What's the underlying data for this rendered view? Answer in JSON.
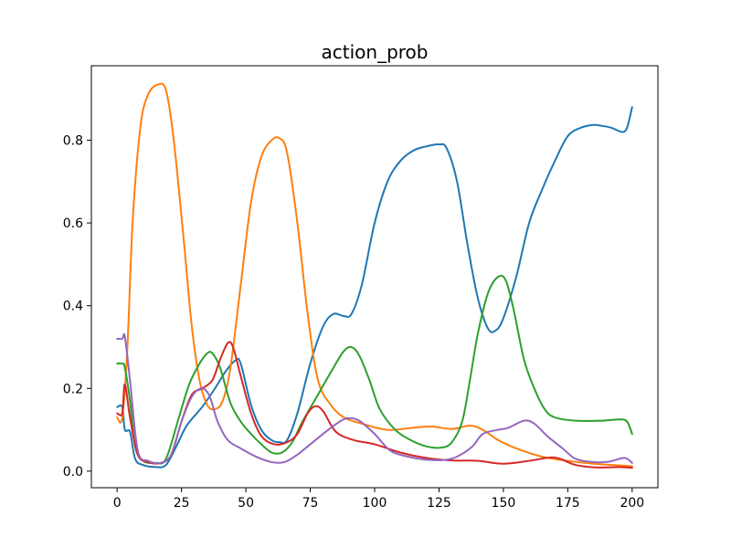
{
  "chart_data": {
    "type": "line",
    "title": "action_prob",
    "xlabel": "",
    "ylabel": "",
    "xlim": [
      -10,
      210
    ],
    "ylim": [
      -0.04,
      0.98
    ],
    "xticks": [
      0,
      25,
      50,
      75,
      100,
      125,
      150,
      175,
      200
    ],
    "yticks": [
      0.0,
      0.2,
      0.4,
      0.6,
      0.8
    ],
    "ytick_labels": [
      "0.0",
      "0.2",
      "0.4",
      "0.6",
      "0.8"
    ],
    "grid": false,
    "legend": "none",
    "series": [
      {
        "color": "#1f77b4",
        "points": [
          [
            0,
            0.155
          ],
          [
            2,
            0.155
          ],
          [
            3,
            0.1
          ],
          [
            5,
            0.095
          ],
          [
            7,
            0.03
          ],
          [
            10,
            0.015
          ],
          [
            15,
            0.01
          ],
          [
            19,
            0.015
          ],
          [
            23,
            0.06
          ],
          [
            27,
            0.11
          ],
          [
            33,
            0.155
          ],
          [
            38,
            0.2
          ],
          [
            42,
            0.24
          ],
          [
            46,
            0.268
          ],
          [
            48,
            0.26
          ],
          [
            52,
            0.16
          ],
          [
            56,
            0.1
          ],
          [
            60,
            0.075
          ],
          [
            63,
            0.07
          ],
          [
            66,
            0.075
          ],
          [
            70,
            0.14
          ],
          [
            75,
            0.26
          ],
          [
            80,
            0.35
          ],
          [
            84,
            0.38
          ],
          [
            88,
            0.375
          ],
          [
            91,
            0.38
          ],
          [
            95,
            0.45
          ],
          [
            100,
            0.6
          ],
          [
            105,
            0.7
          ],
          [
            110,
            0.75
          ],
          [
            115,
            0.775
          ],
          [
            120,
            0.785
          ],
          [
            125,
            0.79
          ],
          [
            128,
            0.78
          ],
          [
            132,
            0.7
          ],
          [
            136,
            0.55
          ],
          [
            140,
            0.42
          ],
          [
            144,
            0.345
          ],
          [
            147,
            0.34
          ],
          [
            150,
            0.37
          ],
          [
            155,
            0.47
          ],
          [
            160,
            0.6
          ],
          [
            165,
            0.68
          ],
          [
            170,
            0.75
          ],
          [
            175,
            0.81
          ],
          [
            180,
            0.83
          ],
          [
            185,
            0.837
          ],
          [
            188,
            0.835
          ],
          [
            192,
            0.83
          ],
          [
            196,
            0.82
          ],
          [
            198,
            0.83
          ],
          [
            200,
            0.88
          ]
        ]
      },
      {
        "color": "#ff7f0e",
        "points": [
          [
            0,
            0.13
          ],
          [
            2,
            0.13
          ],
          [
            4,
            0.3
          ],
          [
            6,
            0.6
          ],
          [
            9,
            0.83
          ],
          [
            12,
            0.91
          ],
          [
            16,
            0.935
          ],
          [
            19,
            0.92
          ],
          [
            22,
            0.8
          ],
          [
            26,
            0.55
          ],
          [
            29,
            0.35
          ],
          [
            32,
            0.22
          ],
          [
            35,
            0.16
          ],
          [
            38,
            0.15
          ],
          [
            41,
            0.17
          ],
          [
            44,
            0.25
          ],
          [
            48,
            0.45
          ],
          [
            52,
            0.65
          ],
          [
            56,
            0.76
          ],
          [
            60,
            0.8
          ],
          [
            63,
            0.805
          ],
          [
            66,
            0.77
          ],
          [
            70,
            0.6
          ],
          [
            74,
            0.38
          ],
          [
            78,
            0.22
          ],
          [
            83,
            0.16
          ],
          [
            88,
            0.13
          ],
          [
            95,
            0.115
          ],
          [
            105,
            0.1
          ],
          [
            115,
            0.105
          ],
          [
            122,
            0.108
          ],
          [
            130,
            0.102
          ],
          [
            137,
            0.11
          ],
          [
            142,
            0.1
          ],
          [
            148,
            0.075
          ],
          [
            155,
            0.055
          ],
          [
            165,
            0.035
          ],
          [
            175,
            0.025
          ],
          [
            185,
            0.018
          ],
          [
            195,
            0.014
          ],
          [
            200,
            0.012
          ]
        ]
      },
      {
        "color": "#2ca02c",
        "points": [
          [
            0,
            0.26
          ],
          [
            2,
            0.26
          ],
          [
            3,
            0.25
          ],
          [
            5,
            0.17
          ],
          [
            7,
            0.06
          ],
          [
            10,
            0.025
          ],
          [
            15,
            0.02
          ],
          [
            19,
            0.03
          ],
          [
            24,
            0.13
          ],
          [
            28,
            0.21
          ],
          [
            32,
            0.26
          ],
          [
            35,
            0.285
          ],
          [
            37,
            0.285
          ],
          [
            40,
            0.25
          ],
          [
            44,
            0.165
          ],
          [
            48,
            0.12
          ],
          [
            52,
            0.09
          ],
          [
            56,
            0.065
          ],
          [
            60,
            0.045
          ],
          [
            64,
            0.045
          ],
          [
            68,
            0.07
          ],
          [
            72,
            0.12
          ],
          [
            78,
            0.185
          ],
          [
            84,
            0.25
          ],
          [
            88,
            0.29
          ],
          [
            91,
            0.3
          ],
          [
            94,
            0.28
          ],
          [
            98,
            0.22
          ],
          [
            102,
            0.15
          ],
          [
            108,
            0.1
          ],
          [
            114,
            0.075
          ],
          [
            120,
            0.06
          ],
          [
            126,
            0.057
          ],
          [
            130,
            0.07
          ],
          [
            134,
            0.12
          ],
          [
            137,
            0.22
          ],
          [
            140,
            0.33
          ],
          [
            144,
            0.43
          ],
          [
            148,
            0.47
          ],
          [
            151,
            0.46
          ],
          [
            154,
            0.39
          ],
          [
            158,
            0.27
          ],
          [
            162,
            0.2
          ],
          [
            166,
            0.15
          ],
          [
            170,
            0.13
          ],
          [
            178,
            0.122
          ],
          [
            188,
            0.122
          ],
          [
            195,
            0.125
          ],
          [
            198,
            0.12
          ],
          [
            200,
            0.09
          ]
        ]
      },
      {
        "color": "#d62728",
        "points": [
          [
            0,
            0.14
          ],
          [
            2,
            0.14
          ],
          [
            3,
            0.21
          ],
          [
            5,
            0.13
          ],
          [
            8,
            0.04
          ],
          [
            12,
            0.022
          ],
          [
            17,
            0.02
          ],
          [
            21,
            0.04
          ],
          [
            25,
            0.12
          ],
          [
            29,
            0.185
          ],
          [
            33,
            0.2
          ],
          [
            37,
            0.22
          ],
          [
            40,
            0.27
          ],
          [
            43,
            0.31
          ],
          [
            45,
            0.3
          ],
          [
            48,
            0.23
          ],
          [
            52,
            0.14
          ],
          [
            56,
            0.085
          ],
          [
            61,
            0.065
          ],
          [
            66,
            0.07
          ],
          [
            70,
            0.09
          ],
          [
            74,
            0.14
          ],
          [
            77,
            0.157
          ],
          [
            80,
            0.145
          ],
          [
            85,
            0.095
          ],
          [
            92,
            0.075
          ],
          [
            100,
            0.065
          ],
          [
            110,
            0.045
          ],
          [
            120,
            0.032
          ],
          [
            130,
            0.026
          ],
          [
            140,
            0.025
          ],
          [
            150,
            0.018
          ],
          [
            160,
            0.025
          ],
          [
            168,
            0.033
          ],
          [
            172,
            0.03
          ],
          [
            178,
            0.015
          ],
          [
            186,
            0.009
          ],
          [
            195,
            0.01
          ],
          [
            200,
            0.008
          ]
        ]
      },
      {
        "color": "#9467bd",
        "points": [
          [
            0,
            0.32
          ],
          [
            2,
            0.32
          ],
          [
            3,
            0.325
          ],
          [
            5,
            0.22
          ],
          [
            8,
            0.05
          ],
          [
            12,
            0.025
          ],
          [
            17,
            0.02
          ],
          [
            21,
            0.04
          ],
          [
            25,
            0.12
          ],
          [
            29,
            0.18
          ],
          [
            33,
            0.2
          ],
          [
            36,
            0.18
          ],
          [
            39,
            0.12
          ],
          [
            43,
            0.075
          ],
          [
            48,
            0.055
          ],
          [
            54,
            0.035
          ],
          [
            60,
            0.022
          ],
          [
            65,
            0.022
          ],
          [
            70,
            0.04
          ],
          [
            76,
            0.07
          ],
          [
            82,
            0.1
          ],
          [
            87,
            0.122
          ],
          [
            90,
            0.128
          ],
          [
            94,
            0.122
          ],
          [
            100,
            0.09
          ],
          [
            106,
            0.05
          ],
          [
            113,
            0.035
          ],
          [
            120,
            0.028
          ],
          [
            127,
            0.027
          ],
          [
            132,
            0.035
          ],
          [
            138,
            0.06
          ],
          [
            142,
            0.09
          ],
          [
            148,
            0.1
          ],
          [
            152,
            0.105
          ],
          [
            158,
            0.122
          ],
          [
            162,
            0.115
          ],
          [
            167,
            0.085
          ],
          [
            173,
            0.055
          ],
          [
            178,
            0.03
          ],
          [
            185,
            0.022
          ],
          [
            191,
            0.023
          ],
          [
            197,
            0.032
          ],
          [
            200,
            0.02
          ]
        ]
      }
    ]
  }
}
